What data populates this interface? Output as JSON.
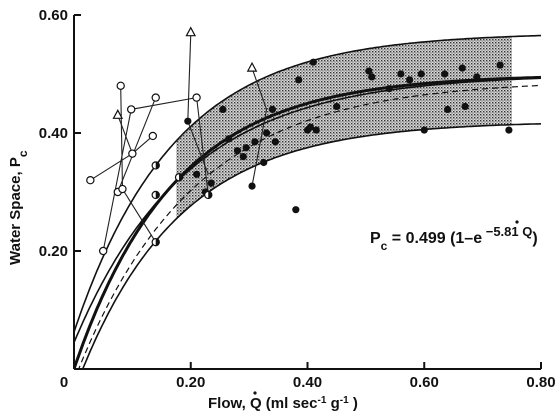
{
  "chart_data": {
    "type": "scatter",
    "title": "",
    "xlabel": "Flow, Q̇ (ml sec⁻¹ g⁻¹)",
    "xlabel_parts": {
      "prefix": "Flow, ",
      "var": "Q",
      "units_open": " (ml  sec",
      "exp1": "-1",
      "mid": "  g",
      "exp2": "-1",
      "close": " )"
    },
    "ylabel": "Water Space, Pc",
    "ylabel_parts": {
      "main": "Water Space, P",
      "sub": "c"
    },
    "xlim": [
      0,
      0.8
    ],
    "ylim": [
      0,
      0.6
    ],
    "xticks": [
      0,
      0.2,
      0.4,
      0.6,
      0.8
    ],
    "xtick_labels": [
      "0",
      "0.20",
      "0.40",
      "0.60",
      "0.80"
    ],
    "yticks": [
      0.2,
      0.4,
      0.6
    ],
    "ytick_labels": [
      "0.20",
      "0.40",
      "0.60"
    ],
    "grid": false,
    "equation": {
      "p": "P",
      "sub": "c",
      "body": " = 0.499 (1–e",
      "exp": " −5.81 Q",
      "close": ")"
    },
    "shaded_band": {
      "x_start": 0.175,
      "x_end": 0.75,
      "upper": {
        "a": 0.57,
        "k": 5.81,
        "x0": -0.02
      },
      "lower": {
        "a": 0.42,
        "k": 5.81,
        "x0": 0.015
      }
    },
    "fitted_curves": [
      {
        "style": "thick",
        "a": 0.499,
        "k": 5.81,
        "x0": 0.0
      },
      {
        "style": "thin",
        "a": 0.57,
        "k": 5.81,
        "x0": -0.02
      },
      {
        "style": "thin",
        "a": 0.42,
        "k": 5.81,
        "x0": 0.015
      },
      {
        "style": "thin",
        "a": 0.5,
        "k": 5.2,
        "x0": -0.018
      },
      {
        "style": "dashed",
        "a": 0.49,
        "k": 5.0,
        "x0": 0.008
      }
    ],
    "series": [
      {
        "marker": "filled-circle",
        "points": [
          [
            0.195,
            0.42
          ],
          [
            0.21,
            0.33
          ],
          [
            0.225,
            0.3
          ],
          [
            0.235,
            0.315
          ],
          [
            0.255,
            0.44
          ],
          [
            0.265,
            0.39
          ],
          [
            0.28,
            0.37
          ],
          [
            0.29,
            0.36
          ],
          [
            0.295,
            0.375
          ],
          [
            0.305,
            0.31
          ],
          [
            0.31,
            0.385
          ],
          [
            0.325,
            0.35
          ],
          [
            0.33,
            0.4
          ],
          [
            0.34,
            0.44
          ],
          [
            0.345,
            0.385
          ],
          [
            0.38,
            0.27
          ],
          [
            0.385,
            0.49
          ],
          [
            0.4,
            0.405
          ],
          [
            0.405,
            0.41
          ],
          [
            0.41,
            0.52
          ],
          [
            0.415,
            0.405
          ],
          [
            0.45,
            0.445
          ],
          [
            0.505,
            0.505
          ],
          [
            0.51,
            0.495
          ],
          [
            0.54,
            0.475
          ],
          [
            0.56,
            0.5
          ],
          [
            0.575,
            0.49
          ],
          [
            0.595,
            0.5
          ],
          [
            0.6,
            0.405
          ],
          [
            0.635,
            0.5
          ],
          [
            0.64,
            0.44
          ],
          [
            0.665,
            0.51
          ],
          [
            0.67,
            0.445
          ],
          [
            0.69,
            0.495
          ],
          [
            0.73,
            0.515
          ],
          [
            0.745,
            0.405
          ]
        ]
      },
      {
        "marker": "half-filled-circle",
        "points": [
          [
            0.14,
            0.345
          ],
          [
            0.14,
            0.295
          ],
          [
            0.18,
            0.325
          ],
          [
            0.23,
            0.295
          ],
          [
            0.14,
            0.215
          ]
        ]
      },
      {
        "marker": "open-circle",
        "points": [
          [
            0.028,
            0.32
          ],
          [
            0.05,
            0.2
          ],
          [
            0.075,
            0.3
          ],
          [
            0.083,
            0.305
          ],
          [
            0.08,
            0.48
          ],
          [
            0.098,
            0.44
          ],
          [
            0.1,
            0.365
          ],
          [
            0.135,
            0.395
          ],
          [
            0.14,
            0.46
          ],
          [
            0.21,
            0.46
          ]
        ],
        "connections": [
          [
            [
              0.028,
              0.32
            ],
            [
              0.1,
              0.365
            ],
            [
              0.135,
              0.395
            ]
          ],
          [
            [
              0.05,
              0.2
            ],
            [
              0.098,
              0.44
            ],
            [
              0.21,
              0.46
            ],
            [
              0.23,
              0.295
            ]
          ],
          [
            [
              0.08,
              0.48
            ],
            [
              0.083,
              0.305
            ],
            [
              0.14,
              0.215
            ]
          ],
          [
            [
              0.075,
              0.3
            ],
            [
              0.14,
              0.46
            ]
          ]
        ]
      },
      {
        "marker": "open-triangle",
        "points": [
          [
            0.075,
            0.43
          ],
          [
            0.2,
            0.57
          ],
          [
            0.305,
            0.51
          ]
        ],
        "connections": [
          [
            [
              0.075,
              0.43
            ],
            [
              0.1,
              0.365
            ]
          ],
          [
            [
              0.2,
              0.57
            ],
            [
              0.195,
              0.42
            ],
            [
              0.23,
              0.33
            ]
          ],
          [
            [
              0.305,
              0.51
            ],
            [
              0.33,
              0.44
            ],
            [
              0.305,
              0.31
            ]
          ]
        ]
      }
    ]
  }
}
